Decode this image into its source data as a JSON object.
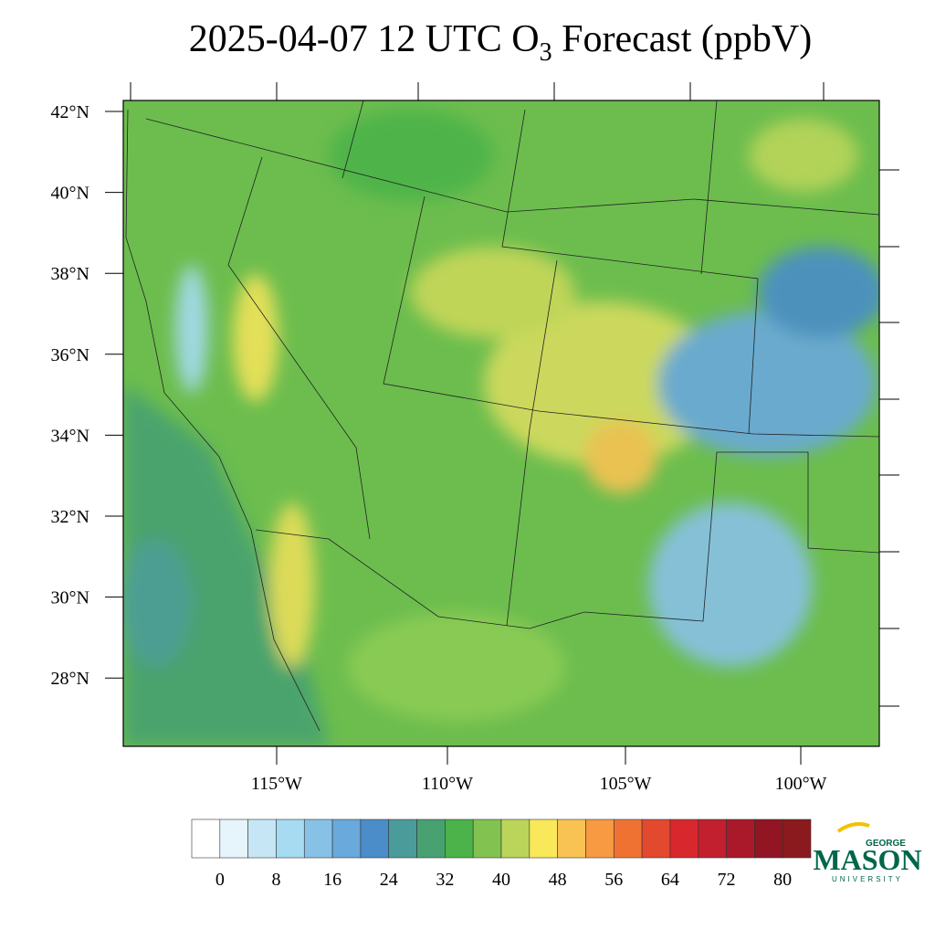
{
  "title": {
    "main": "2025-04-07 12 UTC O",
    "subscript": "3",
    "suffix": " Forecast (ppbV)"
  },
  "map": {
    "lat_labels": [
      "42°N",
      "40°N",
      "38°N",
      "36°N",
      "34°N",
      "32°N",
      "30°N",
      "28°N"
    ],
    "lon_labels": [
      "115°W",
      "110°W",
      "105°W",
      "100°W"
    ]
  },
  "colorbar": {
    "colors": [
      "#ffffff",
      "#e6f4fb",
      "#c6e6f6",
      "#a6dbf2",
      "#88c1e6",
      "#6aa9dc",
      "#4a8dc9",
      "#4a9b9a",
      "#47a171",
      "#4bb34a",
      "#82c250",
      "#bad55a",
      "#f8e85a",
      "#f8c352",
      "#f79a42",
      "#f07233",
      "#e3492e",
      "#d8282e",
      "#c21f2f",
      "#a9192a",
      "#911522",
      "#8a1a1e"
    ],
    "labels": [
      "0",
      "8",
      "16",
      "24",
      "32",
      "40",
      "48",
      "56",
      "64",
      "72",
      "80"
    ]
  },
  "logo": {
    "top": "GEORGE",
    "main": "MASON",
    "bottom": "UNIVERSITY"
  }
}
